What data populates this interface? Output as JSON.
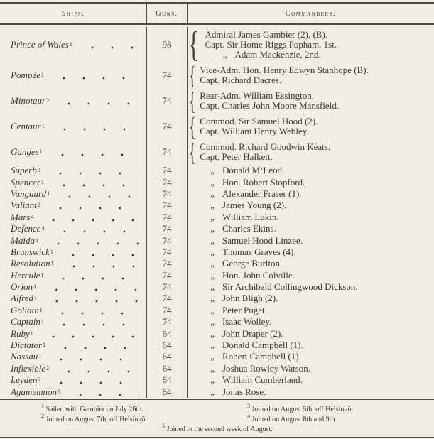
{
  "colors": {
    "paper": "#f1eee1",
    "ink": "#3b382d",
    "rule": "#4e4b3f"
  },
  "glyphs": {
    "brace": "{",
    "ditto": "„"
  },
  "header": {
    "ships": "Ships.",
    "guns": "Guns.",
    "commanders": "Commanders."
  },
  "table": {
    "rows": [
      {
        "ship": "Prince of Wales",
        "note": "1",
        "guns": "98",
        "commanders": [
          {
            "ditto": false,
            "text": "Admiral James Gambier (2), (B)."
          },
          {
            "ditto": false,
            "text": "Capt. Sir Home Riggs Popham, 1st."
          },
          {
            "ditto": true,
            "text": "Adam Mackenzie, 2nd."
          }
        ]
      },
      {
        "ship": "Pompée",
        "note": "1",
        "guns": "74",
        "commanders": [
          {
            "ditto": false,
            "text": "Vice-Adm. Hon. Henry Edwyn Stanhope (B)."
          },
          {
            "ditto": false,
            "text": "Capt. Richard Dacres."
          }
        ]
      },
      {
        "ship": "Minotaur",
        "note": "2",
        "guns": "74",
        "commanders": [
          {
            "ditto": false,
            "text": "Rear-Adm. William Essington."
          },
          {
            "ditto": false,
            "text": "Capt. Charles John Moore Mansfield."
          }
        ]
      },
      {
        "ship": "Centaur",
        "note": "1",
        "guns": "74",
        "commanders": [
          {
            "ditto": false,
            "text": "Commod. Sir Samuel Hood (2)."
          },
          {
            "ditto": false,
            "text": "Capt. William Henry Webley."
          }
        ]
      },
      {
        "ship": "Ganges",
        "note": "1",
        "guns": "74",
        "commanders": [
          {
            "ditto": false,
            "text": "Commod. Richard Goodwin Keats."
          },
          {
            "ditto": false,
            "text": "Capt. Peter Halkett."
          }
        ]
      },
      {
        "ship": "Superb",
        "note": "3",
        "guns": "74",
        "commanders": [
          {
            "ditto": true,
            "text": "Donald M‘Leod."
          }
        ]
      },
      {
        "ship": "Spencer",
        "note": "1",
        "guns": "74",
        "commanders": [
          {
            "ditto": true,
            "text": "Hon. Robert Stopford."
          }
        ]
      },
      {
        "ship": "Vanguard",
        "note": "1",
        "guns": "74",
        "commanders": [
          {
            "ditto": true,
            "text": "Alexander Fraser (1)."
          }
        ]
      },
      {
        "ship": "Valiant",
        "note": "2",
        "guns": "74",
        "commanders": [
          {
            "ditto": true,
            "text": "James Young (2)."
          }
        ]
      },
      {
        "ship": "Mars",
        "note": "4",
        "guns": "74",
        "commanders": [
          {
            "ditto": true,
            "text": "William Lukin."
          }
        ]
      },
      {
        "ship": "Defence",
        "note": "4",
        "guns": "74",
        "commanders": [
          {
            "ditto": true,
            "text": "Charles Ekins."
          }
        ]
      },
      {
        "ship": "Maida",
        "note": "1",
        "guns": "74",
        "commanders": [
          {
            "ditto": true,
            "text": "Samuel Hood Linzee."
          }
        ]
      },
      {
        "ship": "Brunswick",
        "note": "1",
        "guns": "74",
        "commanders": [
          {
            "ditto": true,
            "text": "Thomas Graves (4)."
          }
        ]
      },
      {
        "ship": "Resolution",
        "note": "1",
        "guns": "74",
        "commanders": [
          {
            "ditto": true,
            "text": "George Burlton."
          }
        ]
      },
      {
        "ship": "Hercule",
        "note": "1",
        "guns": "74",
        "commanders": [
          {
            "ditto": true,
            "text": "Hon. John Colville."
          }
        ]
      },
      {
        "ship": "Orion",
        "note": "1",
        "guns": "74",
        "commanders": [
          {
            "ditto": true,
            "text": "Sir Archibald Collingwood Dickson."
          }
        ]
      },
      {
        "ship": "Alfred",
        "note": "1",
        "guns": "74",
        "commanders": [
          {
            "ditto": true,
            "text": "John Bligh (2)."
          }
        ]
      },
      {
        "ship": "Goliath",
        "note": "1",
        "guns": "74",
        "commanders": [
          {
            "ditto": true,
            "text": "Peter Puget."
          }
        ]
      },
      {
        "ship": "Captain",
        "note": "1",
        "guns": "74",
        "commanders": [
          {
            "ditto": true,
            "text": "Isaac Wolley."
          }
        ]
      },
      {
        "ship": "Ruby",
        "note": "1",
        "guns": "64",
        "commanders": [
          {
            "ditto": true,
            "text": "John Draper (2)."
          }
        ]
      },
      {
        "ship": "Dictator",
        "note": "1",
        "guns": "64",
        "commanders": [
          {
            "ditto": true,
            "text": "Donald Campbell (1)."
          }
        ]
      },
      {
        "ship": "Nassau",
        "note": "1",
        "guns": "64",
        "commanders": [
          {
            "ditto": true,
            "text": "Robert Campbell (1)."
          }
        ]
      },
      {
        "ship": "Inflexible",
        "note": "2",
        "guns": "64",
        "commanders": [
          {
            "ditto": true,
            "text": "Joshua Rowley Watson."
          }
        ]
      },
      {
        "ship": "Leyden",
        "note": "2",
        "guns": "64",
        "commanders": [
          {
            "ditto": true,
            "text": "William Cumberland."
          }
        ]
      },
      {
        "ship": "Agamemnon",
        "note": "5",
        "guns": "64",
        "commanders": [
          {
            "ditto": true,
            "text": "Jonas Rose."
          }
        ]
      }
    ]
  },
  "footnotes": {
    "left": [
      {
        "mark": "1",
        "text": "Sailed with Gambier on July 26th."
      },
      {
        "mark": "2",
        "text": "Joined on August 7th, off Helsingör."
      }
    ],
    "right": [
      {
        "mark": "3",
        "text": "Joined on August 5th, off Helsingör."
      },
      {
        "mark": "4",
        "text": "Joined on August 8th and 9th."
      }
    ],
    "center": [
      {
        "mark": "5",
        "text": "Joined in the second week of August."
      }
    ]
  }
}
